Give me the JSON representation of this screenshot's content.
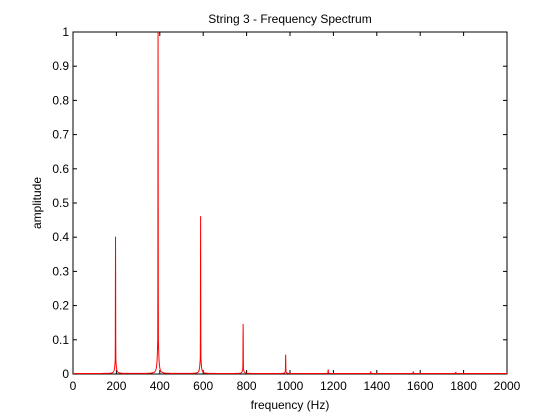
{
  "chart_data": {
    "type": "line",
    "title": "String 3 - Frequency Spectrum",
    "xlabel": "frequency (Hz)",
    "ylabel": "amplitude",
    "xlim": [
      0,
      2000
    ],
    "ylim": [
      0,
      1
    ],
    "x_ticks": [
      0,
      200,
      400,
      600,
      800,
      1000,
      1200,
      1400,
      1600,
      1800,
      2000
    ],
    "y_ticks": [
      0,
      0.1,
      0.2,
      0.3,
      0.4,
      0.5,
      0.6,
      0.7,
      0.8,
      0.9,
      1
    ],
    "grid": false,
    "series_color": "#ff0000",
    "series": [
      {
        "name": "",
        "peaks": [
          {
            "x": 196,
            "y": 0.4
          },
          {
            "x": 392,
            "y": 1.0
          },
          {
            "x": 588,
            "y": 0.46
          },
          {
            "x": 784,
            "y": 0.145
          },
          {
            "x": 980,
            "y": 0.055
          },
          {
            "x": 1176,
            "y": 0.012
          },
          {
            "x": 1372,
            "y": 0.006
          },
          {
            "x": 1568,
            "y": 0.006
          },
          {
            "x": 1764,
            "y": 0.004
          }
        ]
      }
    ]
  }
}
